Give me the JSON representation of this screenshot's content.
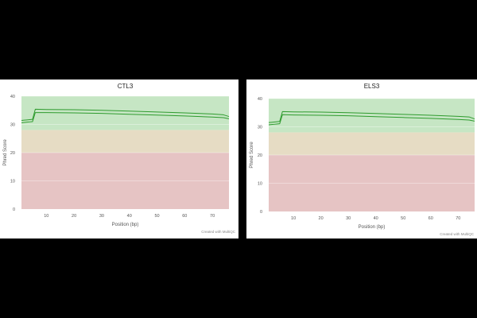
{
  "chart_data": [
    {
      "type": "line",
      "title": "CTL3",
      "xlabel": "Position (bp)",
      "ylabel": "Phred Score",
      "credit": "Created with MultiQC",
      "xlim": [
        1,
        76
      ],
      "ylim": [
        0,
        40
      ],
      "x_ticks": [
        10,
        20,
        30,
        40,
        50,
        60,
        70
      ],
      "y_ticks": [
        0,
        10,
        20,
        30,
        40
      ],
      "bands": [
        {
          "from": 28,
          "to": 40,
          "color": "#c6e6c4"
        },
        {
          "from": 20,
          "to": 28,
          "color": "#e6dcc4"
        },
        {
          "from": 0,
          "to": 20,
          "color": "#e6c4c4"
        }
      ],
      "line_color": "#2e9b2e",
      "series": [
        {
          "x": [
            1,
            2,
            3,
            4,
            5,
            6,
            10,
            20,
            30,
            40,
            50,
            60,
            70,
            74,
            76
          ],
          "values": [
            31.4,
            31.5,
            31.6,
            31.7,
            31.8,
            35.4,
            35.3,
            35.2,
            35.0,
            34.7,
            34.4,
            34.1,
            33.7,
            33.4,
            32.8
          ]
        },
        {
          "x": [
            1,
            2,
            3,
            4,
            5,
            6,
            10,
            20,
            30,
            40,
            50,
            60,
            70,
            74,
            76
          ],
          "values": [
            30.6,
            30.7,
            30.8,
            30.9,
            31.0,
            34.2,
            34.2,
            34.1,
            33.9,
            33.6,
            33.3,
            33.0,
            32.6,
            32.4,
            32.0
          ]
        }
      ]
    },
    {
      "type": "line",
      "title": "ELS3",
      "xlabel": "Position (bp)",
      "ylabel": "Phred Score",
      "credit": "Created with MultiQC",
      "xlim": [
        1,
        76
      ],
      "ylim": [
        0,
        40
      ],
      "x_ticks": [
        10,
        20,
        30,
        40,
        50,
        60,
        70
      ],
      "y_ticks": [
        0,
        10,
        20,
        30,
        40
      ],
      "bands": [
        {
          "from": 28,
          "to": 40,
          "color": "#c6e6c4"
        },
        {
          "from": 20,
          "to": 28,
          "color": "#e6dcc4"
        },
        {
          "from": 0,
          "to": 20,
          "color": "#e6c4c4"
        }
      ],
      "line_color": "#2e9b2e",
      "series": [
        {
          "x": [
            1,
            2,
            3,
            4,
            5,
            6,
            10,
            20,
            30,
            40,
            50,
            60,
            70,
            74,
            76
          ],
          "values": [
            31.5,
            31.6,
            31.7,
            31.8,
            31.9,
            35.4,
            35.3,
            35.2,
            35.0,
            34.7,
            34.4,
            34.1,
            33.7,
            33.5,
            32.8
          ]
        },
        {
          "x": [
            1,
            2,
            3,
            4,
            5,
            6,
            10,
            20,
            30,
            40,
            50,
            60,
            70,
            74,
            76
          ],
          "values": [
            30.7,
            30.8,
            30.9,
            31.0,
            31.1,
            34.3,
            34.2,
            34.1,
            33.9,
            33.6,
            33.3,
            33.0,
            32.6,
            32.4,
            32.0
          ]
        }
      ]
    }
  ]
}
